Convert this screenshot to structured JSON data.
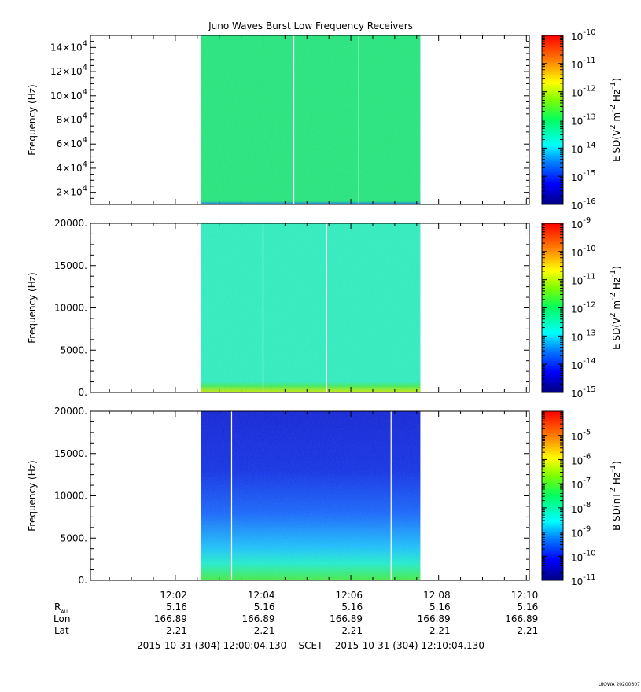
{
  "title": "Juno Waves Burst Low Frequency Receivers",
  "footer": {
    "scet_range": "2015-10-31 (304) 12:00:04.130    SCET    2015-10-31 (304) 12:10:04.130",
    "watermark": "UIOWA 20200307"
  },
  "ephemeris": {
    "row_labels": [
      "R",
      "Lon",
      "Lat"
    ],
    "r_subscript": "AU",
    "columns": [
      {
        "time": "12:02",
        "r": "5.16",
        "lon": "166.89",
        "lat": "2.21"
      },
      {
        "time": "12:04",
        "r": "5.16",
        "lon": "166.89",
        "lat": "2.21"
      },
      {
        "time": "12:06",
        "r": "5.16",
        "lon": "166.89",
        "lat": "2.21"
      },
      {
        "time": "12:08",
        "r": "5.16",
        "lon": "166.89",
        "lat": "2.21"
      },
      {
        "time": "12:10",
        "r": "5.16",
        "lon": "166.89",
        "lat": "2.21"
      }
    ]
  },
  "chart_data": [
    {
      "type": "heatmap",
      "ylabel": "Frequency (Hz)",
      "y_ticks": [
        {
          "value": 20000,
          "label": "2×10",
          "exp": "4"
        },
        {
          "value": 40000,
          "label": "4×10",
          "exp": "4"
        },
        {
          "value": 60000,
          "label": "6×10",
          "exp": "4"
        },
        {
          "value": 80000,
          "label": "8×10",
          "exp": "4"
        },
        {
          "value": 100000,
          "label": "10×10",
          "exp": "4"
        },
        {
          "value": 120000,
          "label": "12×10",
          "exp": "4"
        },
        {
          "value": 140000,
          "label": "14×10",
          "exp": "4"
        }
      ],
      "ylim": [
        10000,
        150000
      ],
      "xlim": [
        "12:00:04",
        "12:10:04"
      ],
      "data_range": [
        "12:02:35",
        "12:07:35"
      ],
      "gaps": [
        "12:04:42",
        "12:06:11"
      ],
      "fill_color": "#22e87c",
      "base_color": "#1a8cff",
      "colorbar": {
        "label": "E SD (V² m⁻² Hz⁻¹)",
        "label_parts": [
          "E SD(V",
          "2",
          " m",
          "-2",
          " Hz",
          "-1",
          ")"
        ],
        "min_exp": -16,
        "max_exp": -10,
        "tick_exps": [
          "-10",
          "-11",
          "-12",
          "-13",
          "-14",
          "-15",
          "-16"
        ]
      }
    },
    {
      "type": "heatmap",
      "ylabel": "Frequency (Hz)",
      "y_ticks": [
        {
          "value": 0,
          "label": "0."
        },
        {
          "value": 5000,
          "label": "5000."
        },
        {
          "value": 10000,
          "label": "10000."
        },
        {
          "value": 15000,
          "label": "15000."
        },
        {
          "value": 20000,
          "label": "20000."
        }
      ],
      "ylim": [
        0,
        20000
      ],
      "xlim": [
        "12:00:04",
        "12:10:04"
      ],
      "data_range": [
        "12:02:35",
        "12:07:35"
      ],
      "gaps": [
        "12:04:00",
        "12:05:27"
      ],
      "fill_color": "#2ef0c0",
      "base_color": "#aaee22",
      "colorbar": {
        "label": "E SD (V² m⁻² Hz⁻¹)",
        "label_parts": [
          "E SD(V",
          "2",
          " m",
          "-2",
          " Hz",
          "-1",
          ")"
        ],
        "min_exp": -15,
        "max_exp": -9,
        "tick_exps": [
          "-9",
          "-10",
          "-11",
          "-12",
          "-13",
          "-14",
          "-15"
        ]
      }
    },
    {
      "type": "heatmap",
      "ylabel": "Frequency (Hz)",
      "y_ticks": [
        {
          "value": 0,
          "label": "0."
        },
        {
          "value": 5000,
          "label": "5000."
        },
        {
          "value": 10000,
          "label": "10000."
        },
        {
          "value": 15000,
          "label": "15000."
        },
        {
          "value": 20000,
          "label": "20000."
        }
      ],
      "ylim": [
        0,
        20000
      ],
      "xlim": [
        "12:00:04",
        "12:10:04"
      ],
      "data_range": [
        "12:02:35",
        "12:07:35"
      ],
      "gaps": [
        "12:03:17",
        "12:06:55"
      ],
      "fill_color": "#1030e0",
      "base_color": "#33ee44",
      "colorbar": {
        "label": "B SD (nT² Hz⁻¹)",
        "label_parts": [
          "B SD(nT",
          "2",
          " Hz",
          "-1",
          ")"
        ],
        "min_exp": -11,
        "max_exp": -4,
        "tick_exps": [
          "-5",
          "-6",
          "-7",
          "-8",
          "-9",
          "-10",
          "-11"
        ]
      }
    }
  ]
}
